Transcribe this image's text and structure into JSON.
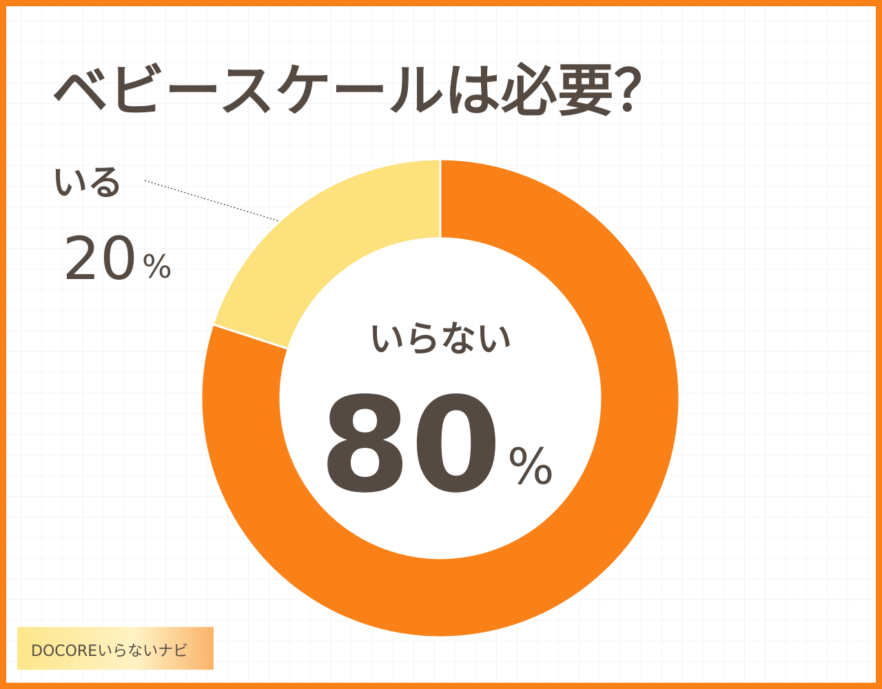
{
  "chart_data": {
    "type": "donut",
    "title": "ベビースケールは必要？",
    "categories": [
      "いらない",
      "いる"
    ],
    "values": [
      80,
      20
    ],
    "unit": "%",
    "colors": [
      "#f98118",
      "#fce17c"
    ],
    "watermark": "DOCOREいらないナビ"
  }
}
